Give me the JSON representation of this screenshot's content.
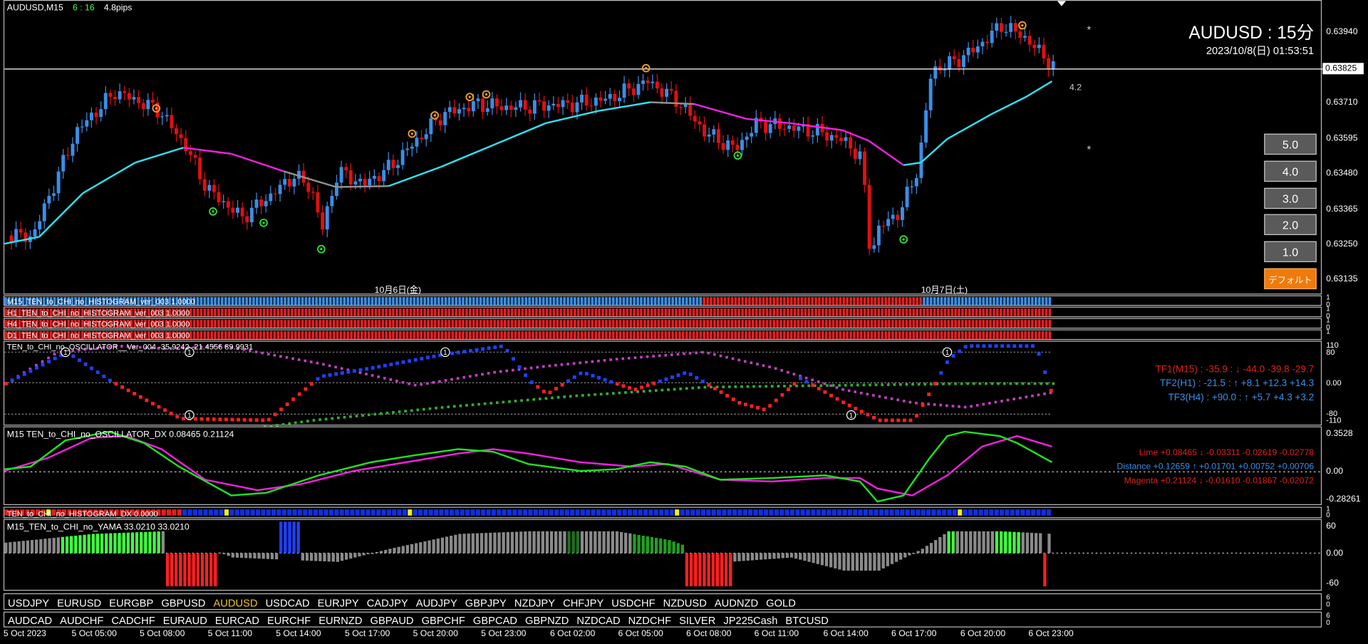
{
  "main_chart": {
    "symbol": "AUDUSD,M15",
    "countdown": "6 : 16",
    "spread": "4.8pips",
    "info_title": "AUDUSD : 15分",
    "info_datetime": "2023/10/8(日) 01:53:51",
    "current_price": "0.63825",
    "distance_label": "4.2",
    "star_label": "*",
    "price_levels": [
      "0.63940",
      "0.63825",
      "0.63710",
      "0.63595",
      "0.63480",
      "0.63365",
      "0.63250",
      "0.63135"
    ],
    "day_labels": [
      "10月6日(金)",
      "10月7日(土)"
    ],
    "colors": {
      "bull": "#3a8ee6",
      "bear": "#e01010",
      "ma_cyan": "#30e0f0",
      "ma_magenta": "#f020e0",
      "ma_gray": "#909090"
    }
  },
  "buttons": {
    "b5": "5.0",
    "b4": "4.0",
    "b3": "3.0",
    "b2": "2.0",
    "b1": "1.0",
    "default": "デフォルト"
  },
  "histograms": [
    {
      "label": "M15_TEN_to_CHI_no_HISTOGRAM_ver_003 1.0000"
    },
    {
      "label": "H1_TEN_to_CHI_no_HISTOGRAM_ver_003 1.0000"
    },
    {
      "label": "H4_TEN_to_CHI_no_HISTOGRAM_ver_003 1.0000"
    },
    {
      "label": "D1_TEN_to_CHI_no_HISTOGRAM_ver_003 1.0000"
    }
  ],
  "hist_axis": {
    "one": "1",
    "zero": "0"
  },
  "oscillator": {
    "title": "TEN_to_CHI_no_OSCILLATOR__Ver_004 -35.9242 -21.4556 89.9931",
    "levels": [
      "110",
      "80",
      "0.00",
      "-80",
      "-110"
    ],
    "tf1": "TF1(M15) : -35.9 : ↓ -44.0 -39.8 -29.7",
    "tf2": "TF2(H1) : -21.5 : ↑ +8.1 +12.3 +14.3",
    "tf3": "TF3(H4) : +90.0 : ↑ +5.7 +4.3 +3.2",
    "marker": "1"
  },
  "dx": {
    "title": "M15 TEN_to_CHI_no_OSCILLATOR_DX 0.08465 0.21124",
    "levels": [
      "0.3528",
      "0.00",
      "-0.28261"
    ],
    "lime": "Lime +0.08465 ↓ -0.03311 -0.02619 -0.02778",
    "distance": "Distance +0.12659 ↑ +0.01701 +0.00752 +0.00706",
    "magenta": "Magenta +0.21124 ↓ -0.01610 -0.01867 -0.02072"
  },
  "hist_dx": {
    "title": "TEN_to_CHI_no_HISTOGRAM_DX 0.0000",
    "levels": [
      "1",
      "0"
    ]
  },
  "yama": {
    "title": "M15_TEN_to_CHI_no_YAMA 33.0210 33.0210",
    "levels": [
      "60",
      "0.00",
      "-60"
    ]
  },
  "symbols_row1": [
    "USDJPY",
    "EURUSD",
    "EURGBP",
    "GBPUSD",
    "AUDUSD",
    "USDCAD",
    "EURJPY",
    "CADJPY",
    "AUDJPY",
    "GBPJPY",
    "NZDJPY",
    "CHFJPY",
    "USDCHF",
    "NZDUSD",
    "AUDNZD",
    "GOLD"
  ],
  "symbols_row2": [
    "AUDCAD",
    "AUDCHF",
    "CADCHF",
    "EURAUD",
    "EURCAD",
    "EURCHF",
    "EURNZD",
    "GBPAUD",
    "GBPCHF",
    "GBPCAD",
    "GBPNZD",
    "NZDCAD",
    "NZDCHF",
    "SILVER",
    "JP225Cash",
    "BTCUSD"
  ],
  "active_symbol": "AUDUSD",
  "symbol_axis": {
    "a": "6",
    "b": "0"
  },
  "time_labels": [
    "5 Oct 2023",
    "5 Oct 05:00",
    "5 Oct 08:00",
    "5 Oct 11:00",
    "5 Oct 14:00",
    "5 Oct 17:00",
    "5 Oct 20:00",
    "5 Oct 23:00",
    "6 Oct 02:00",
    "6 Oct 05:00",
    "6 Oct 08:00",
    "6 Oct 11:00",
    "6 Oct 14:00",
    "6 Oct 17:00",
    "6 Oct 20:00",
    "6 Oct 23:00"
  ]
}
